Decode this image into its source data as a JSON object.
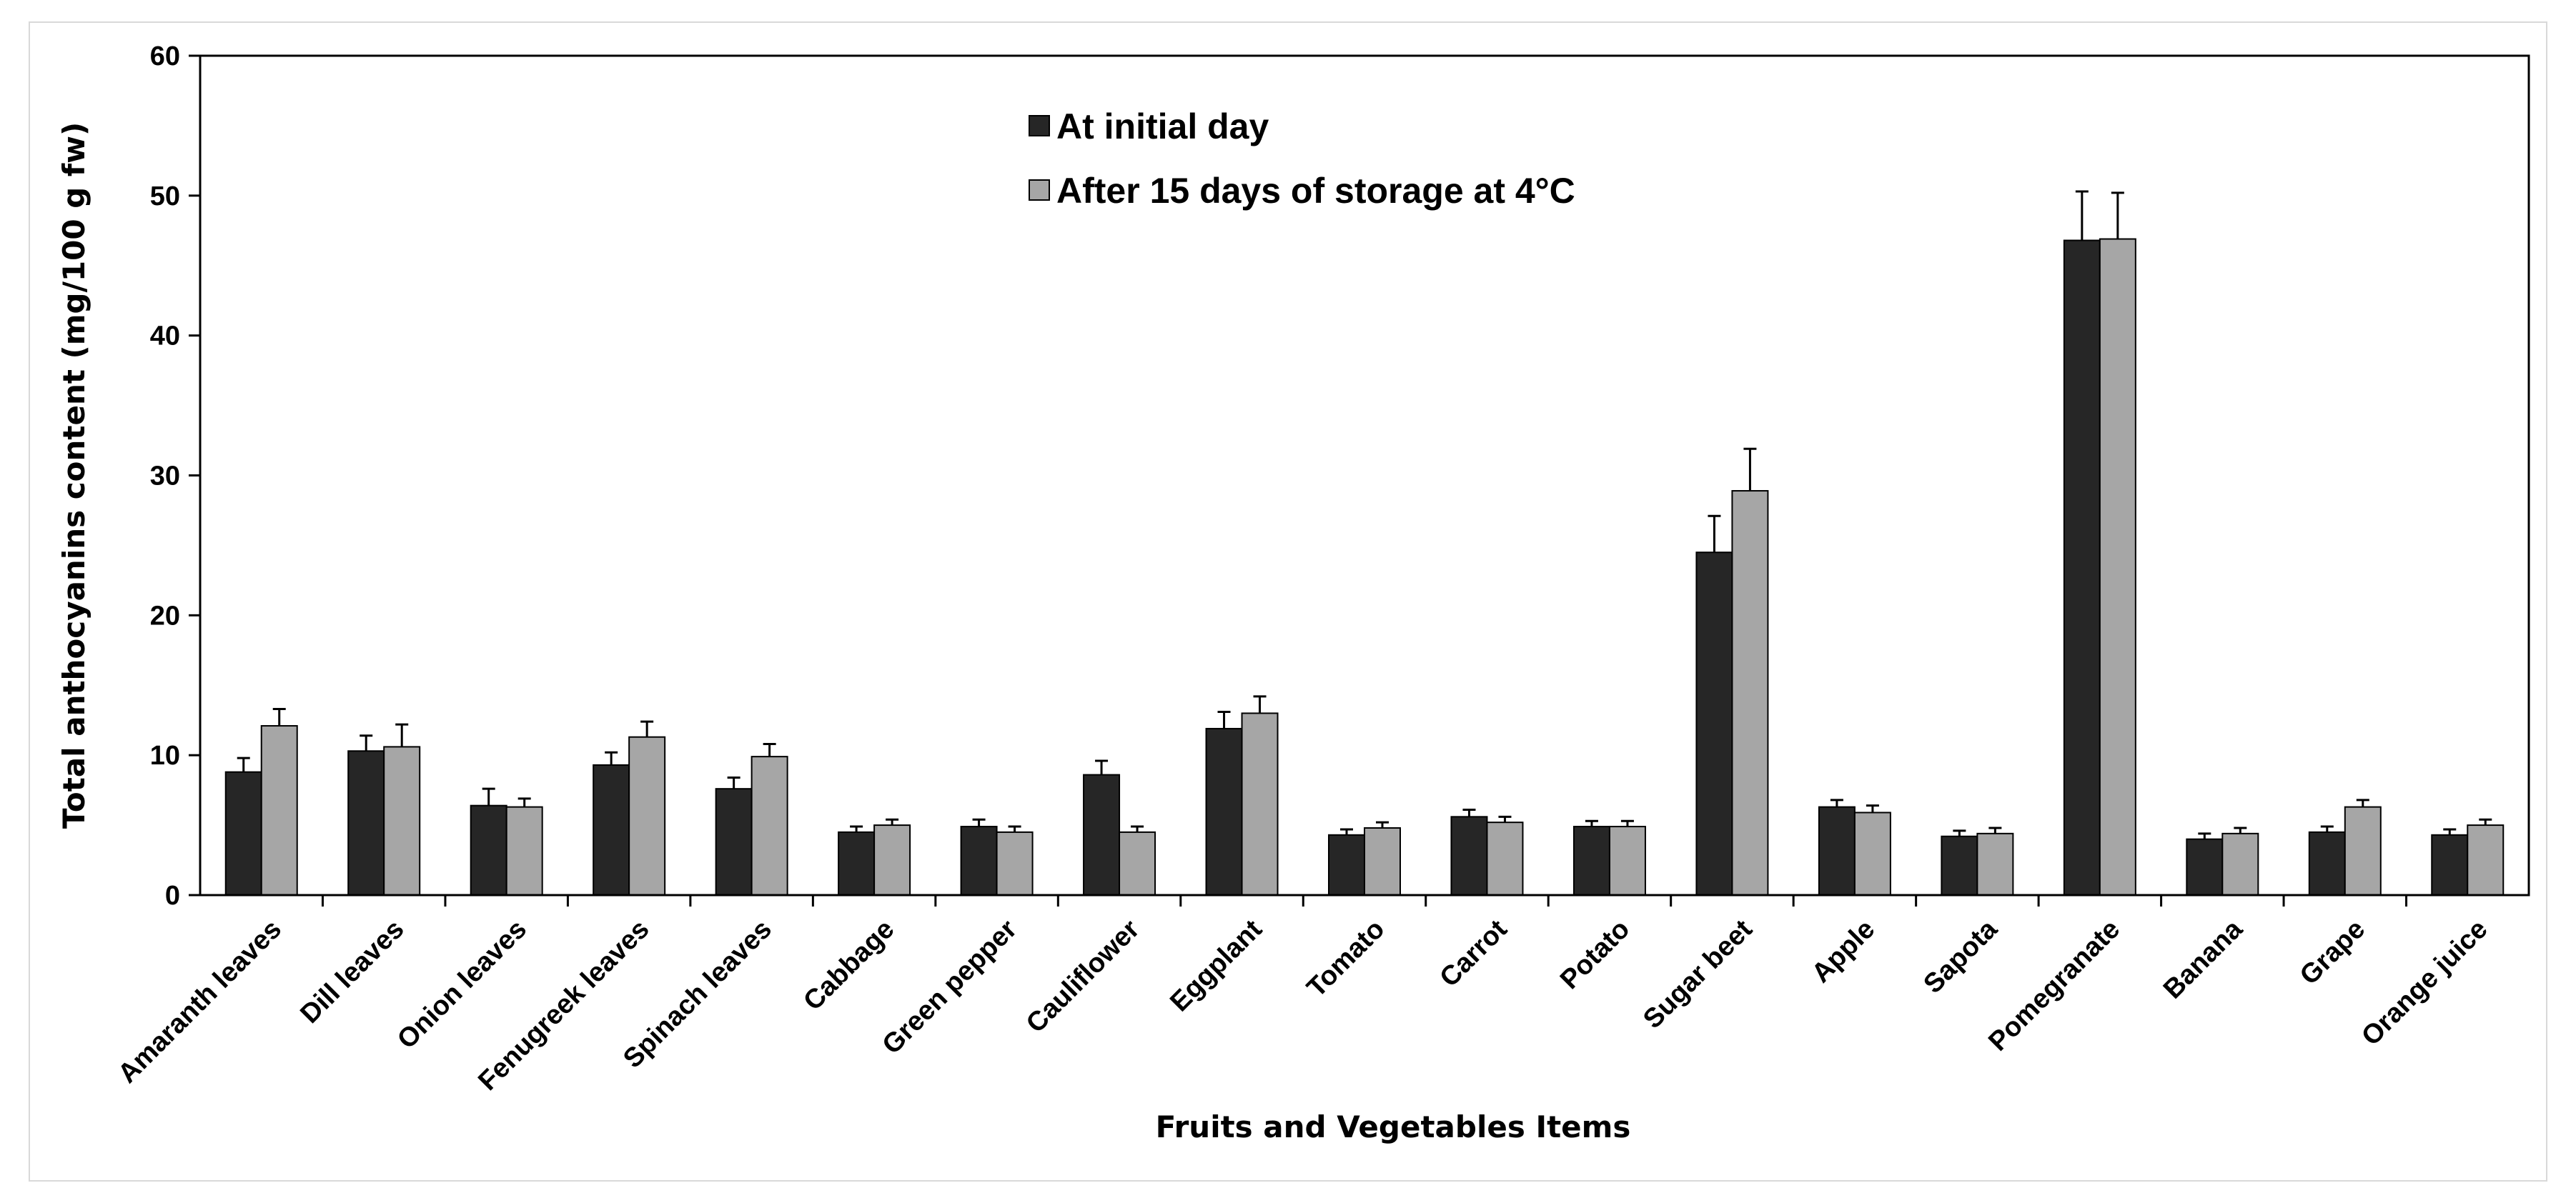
{
  "chart_data": {
    "type": "bar",
    "title": "",
    "xlabel": "Fruits and Vegetables Items",
    "ylabel": "Total anthocyanins content (mg/100 g fw)",
    "ylim": [
      0,
      60
    ],
    "yticks": [
      "0",
      "10",
      "20",
      "30",
      "40",
      "50",
      "60"
    ],
    "grid": false,
    "legend_position": "top-center",
    "categories": [
      "Amaranth leaves",
      "Dill leaves",
      "Onion leaves",
      "Fenugreek leaves",
      "Spinach leaves",
      "Cabbage",
      "Green pepper",
      "Cauliflower",
      "Eggplant",
      "Tomato",
      "Carrot",
      "Potato",
      "Sugar beet",
      "Apple",
      "Sapota",
      "Pomegranate",
      "Banana",
      "Grape",
      "Orange juice"
    ],
    "series": [
      {
        "name": "At initial day",
        "color": "#262626",
        "values": [
          8.8,
          10.3,
          6.4,
          9.3,
          7.6,
          4.5,
          4.9,
          8.6,
          11.9,
          4.3,
          5.6,
          4.9,
          24.5,
          6.3,
          4.2,
          46.8,
          4.0,
          4.5,
          4.3
        ],
        "errors": [
          1.0,
          1.1,
          1.2,
          0.9,
          0.8,
          0.4,
          0.5,
          1.0,
          1.2,
          0.4,
          0.5,
          0.4,
          2.6,
          0.5,
          0.4,
          3.5,
          0.4,
          0.4,
          0.4
        ]
      },
      {
        "name": "After 15 days of storage at 4°C",
        "color": "#a6a6a6",
        "values": [
          12.1,
          10.6,
          6.3,
          11.3,
          9.9,
          5.0,
          4.5,
          4.5,
          13.0,
          4.8,
          5.2,
          4.9,
          28.9,
          5.9,
          4.4,
          46.9,
          4.4,
          6.3,
          5.0
        ],
        "errors": [
          1.2,
          1.6,
          0.6,
          1.1,
          0.9,
          0.4,
          0.4,
          0.4,
          1.2,
          0.4,
          0.4,
          0.4,
          3.0,
          0.5,
          0.4,
          3.3,
          0.4,
          0.5,
          0.4
        ]
      }
    ]
  }
}
